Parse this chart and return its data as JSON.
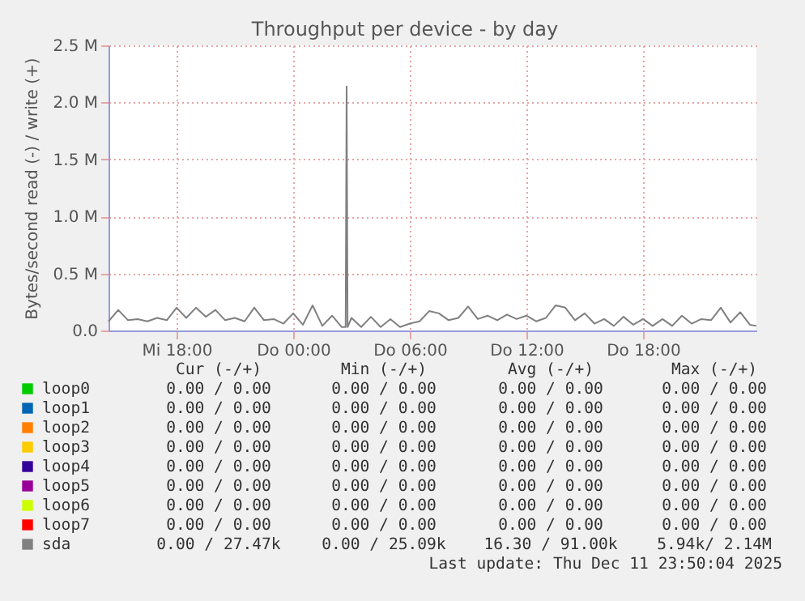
{
  "chart_data": {
    "type": "line",
    "title": "Throughput per device - by day",
    "ylabel": "Bytes/second read (-) / write (+)",
    "xlim": [
      "2025-12-10T14:30",
      "2025-12-11T23:50"
    ],
    "xticks": [
      {
        "value": "2025-12-10T18:00",
        "label": "Mi 18:00"
      },
      {
        "value": "2025-12-11T00:00",
        "label": "Do 00:00"
      },
      {
        "value": "2025-12-11T06:00",
        "label": "Do 06:00"
      },
      {
        "value": "2025-12-11T12:00",
        "label": "Do 12:00"
      },
      {
        "value": "2025-12-11T18:00",
        "label": "Do 18:00"
      }
    ],
    "ylim": [
      0,
      2500000
    ],
    "yticks": [
      {
        "value": 0,
        "label": "0.0"
      },
      {
        "value": 500000,
        "label": "0.5 M"
      },
      {
        "value": 1000000,
        "label": "1.0 M"
      },
      {
        "value": 1500000,
        "label": "1.5 M"
      },
      {
        "value": 2000000,
        "label": "2.0 M"
      },
      {
        "value": 2500000,
        "label": "2.5 M"
      }
    ],
    "grid": true,
    "legend": "bottom",
    "marker": "none",
    "line_style": "solid",
    "series": [
      {
        "name": "loop0",
        "color": "#00cc00"
      },
      {
        "name": "loop1",
        "color": "#0066b3"
      },
      {
        "name": "loop2",
        "color": "#ff8000"
      },
      {
        "name": "loop3",
        "color": "#ffcc00"
      },
      {
        "name": "loop4",
        "color": "#330099"
      },
      {
        "name": "loop5",
        "color": "#990099"
      },
      {
        "name": "loop6",
        "color": "#ccff00"
      },
      {
        "name": "loop7",
        "color": "#ff0000"
      },
      {
        "name": "sda",
        "color": "#808080",
        "x": [
          "2025-12-10T14:30",
          "2025-12-10T15:00",
          "2025-12-10T15:30",
          "2025-12-10T16:00",
          "2025-12-10T16:30",
          "2025-12-10T17:00",
          "2025-12-10T17:30",
          "2025-12-10T18:00",
          "2025-12-10T18:30",
          "2025-12-10T19:00",
          "2025-12-10T19:30",
          "2025-12-10T20:00",
          "2025-12-10T20:30",
          "2025-12-10T21:00",
          "2025-12-10T21:30",
          "2025-12-10T22:00",
          "2025-12-10T22:30",
          "2025-12-10T23:00",
          "2025-12-10T23:30",
          "2025-12-11T00:00",
          "2025-12-11T00:30",
          "2025-12-11T01:00",
          "2025-12-11T01:30",
          "2025-12-11T02:00",
          "2025-12-11T02:30",
          "2025-12-11T02:42",
          "2025-12-11T02:45",
          "2025-12-11T02:48",
          "2025-12-11T03:00",
          "2025-12-11T03:30",
          "2025-12-11T04:00",
          "2025-12-11T04:30",
          "2025-12-11T05:00",
          "2025-12-11T05:30",
          "2025-12-11T06:00",
          "2025-12-11T06:30",
          "2025-12-11T07:00",
          "2025-12-11T07:30",
          "2025-12-11T08:00",
          "2025-12-11T08:30",
          "2025-12-11T09:00",
          "2025-12-11T09:30",
          "2025-12-11T10:00",
          "2025-12-11T10:30",
          "2025-12-11T11:00",
          "2025-12-11T11:30",
          "2025-12-11T12:00",
          "2025-12-11T12:30",
          "2025-12-11T13:00",
          "2025-12-11T13:30",
          "2025-12-11T14:00",
          "2025-12-11T14:30",
          "2025-12-11T15:00",
          "2025-12-11T15:30",
          "2025-12-11T16:00",
          "2025-12-11T16:30",
          "2025-12-11T17:00",
          "2025-12-11T17:30",
          "2025-12-11T18:00",
          "2025-12-11T18:30",
          "2025-12-11T19:00",
          "2025-12-11T19:30",
          "2025-12-11T20:00",
          "2025-12-11T20:30",
          "2025-12-11T21:00",
          "2025-12-11T21:30",
          "2025-12-11T22:00",
          "2025-12-11T22:30",
          "2025-12-11T23:00",
          "2025-12-11T23:30",
          "2025-12-11T23:50"
        ],
        "values": [
          80000,
          180000,
          90000,
          100000,
          80000,
          110000,
          90000,
          200000,
          110000,
          200000,
          120000,
          180000,
          90000,
          110000,
          80000,
          200000,
          90000,
          100000,
          60000,
          150000,
          50000,
          220000,
          40000,
          130000,
          30000,
          30000,
          2140000,
          30000,
          110000,
          30000,
          120000,
          30000,
          100000,
          30000,
          60000,
          80000,
          170000,
          150000,
          90000,
          110000,
          210000,
          100000,
          130000,
          90000,
          140000,
          100000,
          130000,
          80000,
          110000,
          220000,
          200000,
          90000,
          150000,
          60000,
          100000,
          40000,
          120000,
          50000,
          100000,
          40000,
          100000,
          40000,
          130000,
          60000,
          100000,
          90000,
          200000,
          70000,
          160000,
          50000,
          40000
        ]
      }
    ],
    "annotations": [
      "Cur (-/+)",
      "Min (-/+)",
      "Avg (-/+)",
      "Max (-/+)",
      "0.00 /  0.00",
      "0.00 /  0.00",
      "0.00 /  0.00",
      "0.00 /  0.00",
      "0.00 /  0.00",
      "0.00 /  0.00",
      "0.00 /  0.00",
      "0.00 /  0.00",
      "0.00 /  0.00",
      "0.00 /  0.00",
      "0.00 /  0.00",
      "0.00 /  0.00",
      "0.00 /  0.00",
      "0.00 /  0.00",
      "0.00 /  0.00",
      "0.00 /  0.00",
      "0.00 /  0.00",
      "0.00 /  0.00",
      "0.00 /  0.00",
      "0.00 /  0.00",
      "0.00 /  0.00",
      "0.00 /  0.00",
      "0.00 /  0.00",
      "0.00 /  0.00",
      "0.00 /  0.00",
      "0.00 /  0.00",
      "0.00 /  0.00",
      "0.00 /  0.00",
      "0.00 /  0.00",
      "0.00 /  0.00",
      "0.00 /  0.00",
      "0.00 /  0.00",
      "0.00 / 27.47k",
      "0.00 / 25.09k",
      "16.30 / 91.00k",
      "5.94k/  2.14M",
      "Last update: Thu Dec 11 23:50:04 2025"
    ]
  }
}
